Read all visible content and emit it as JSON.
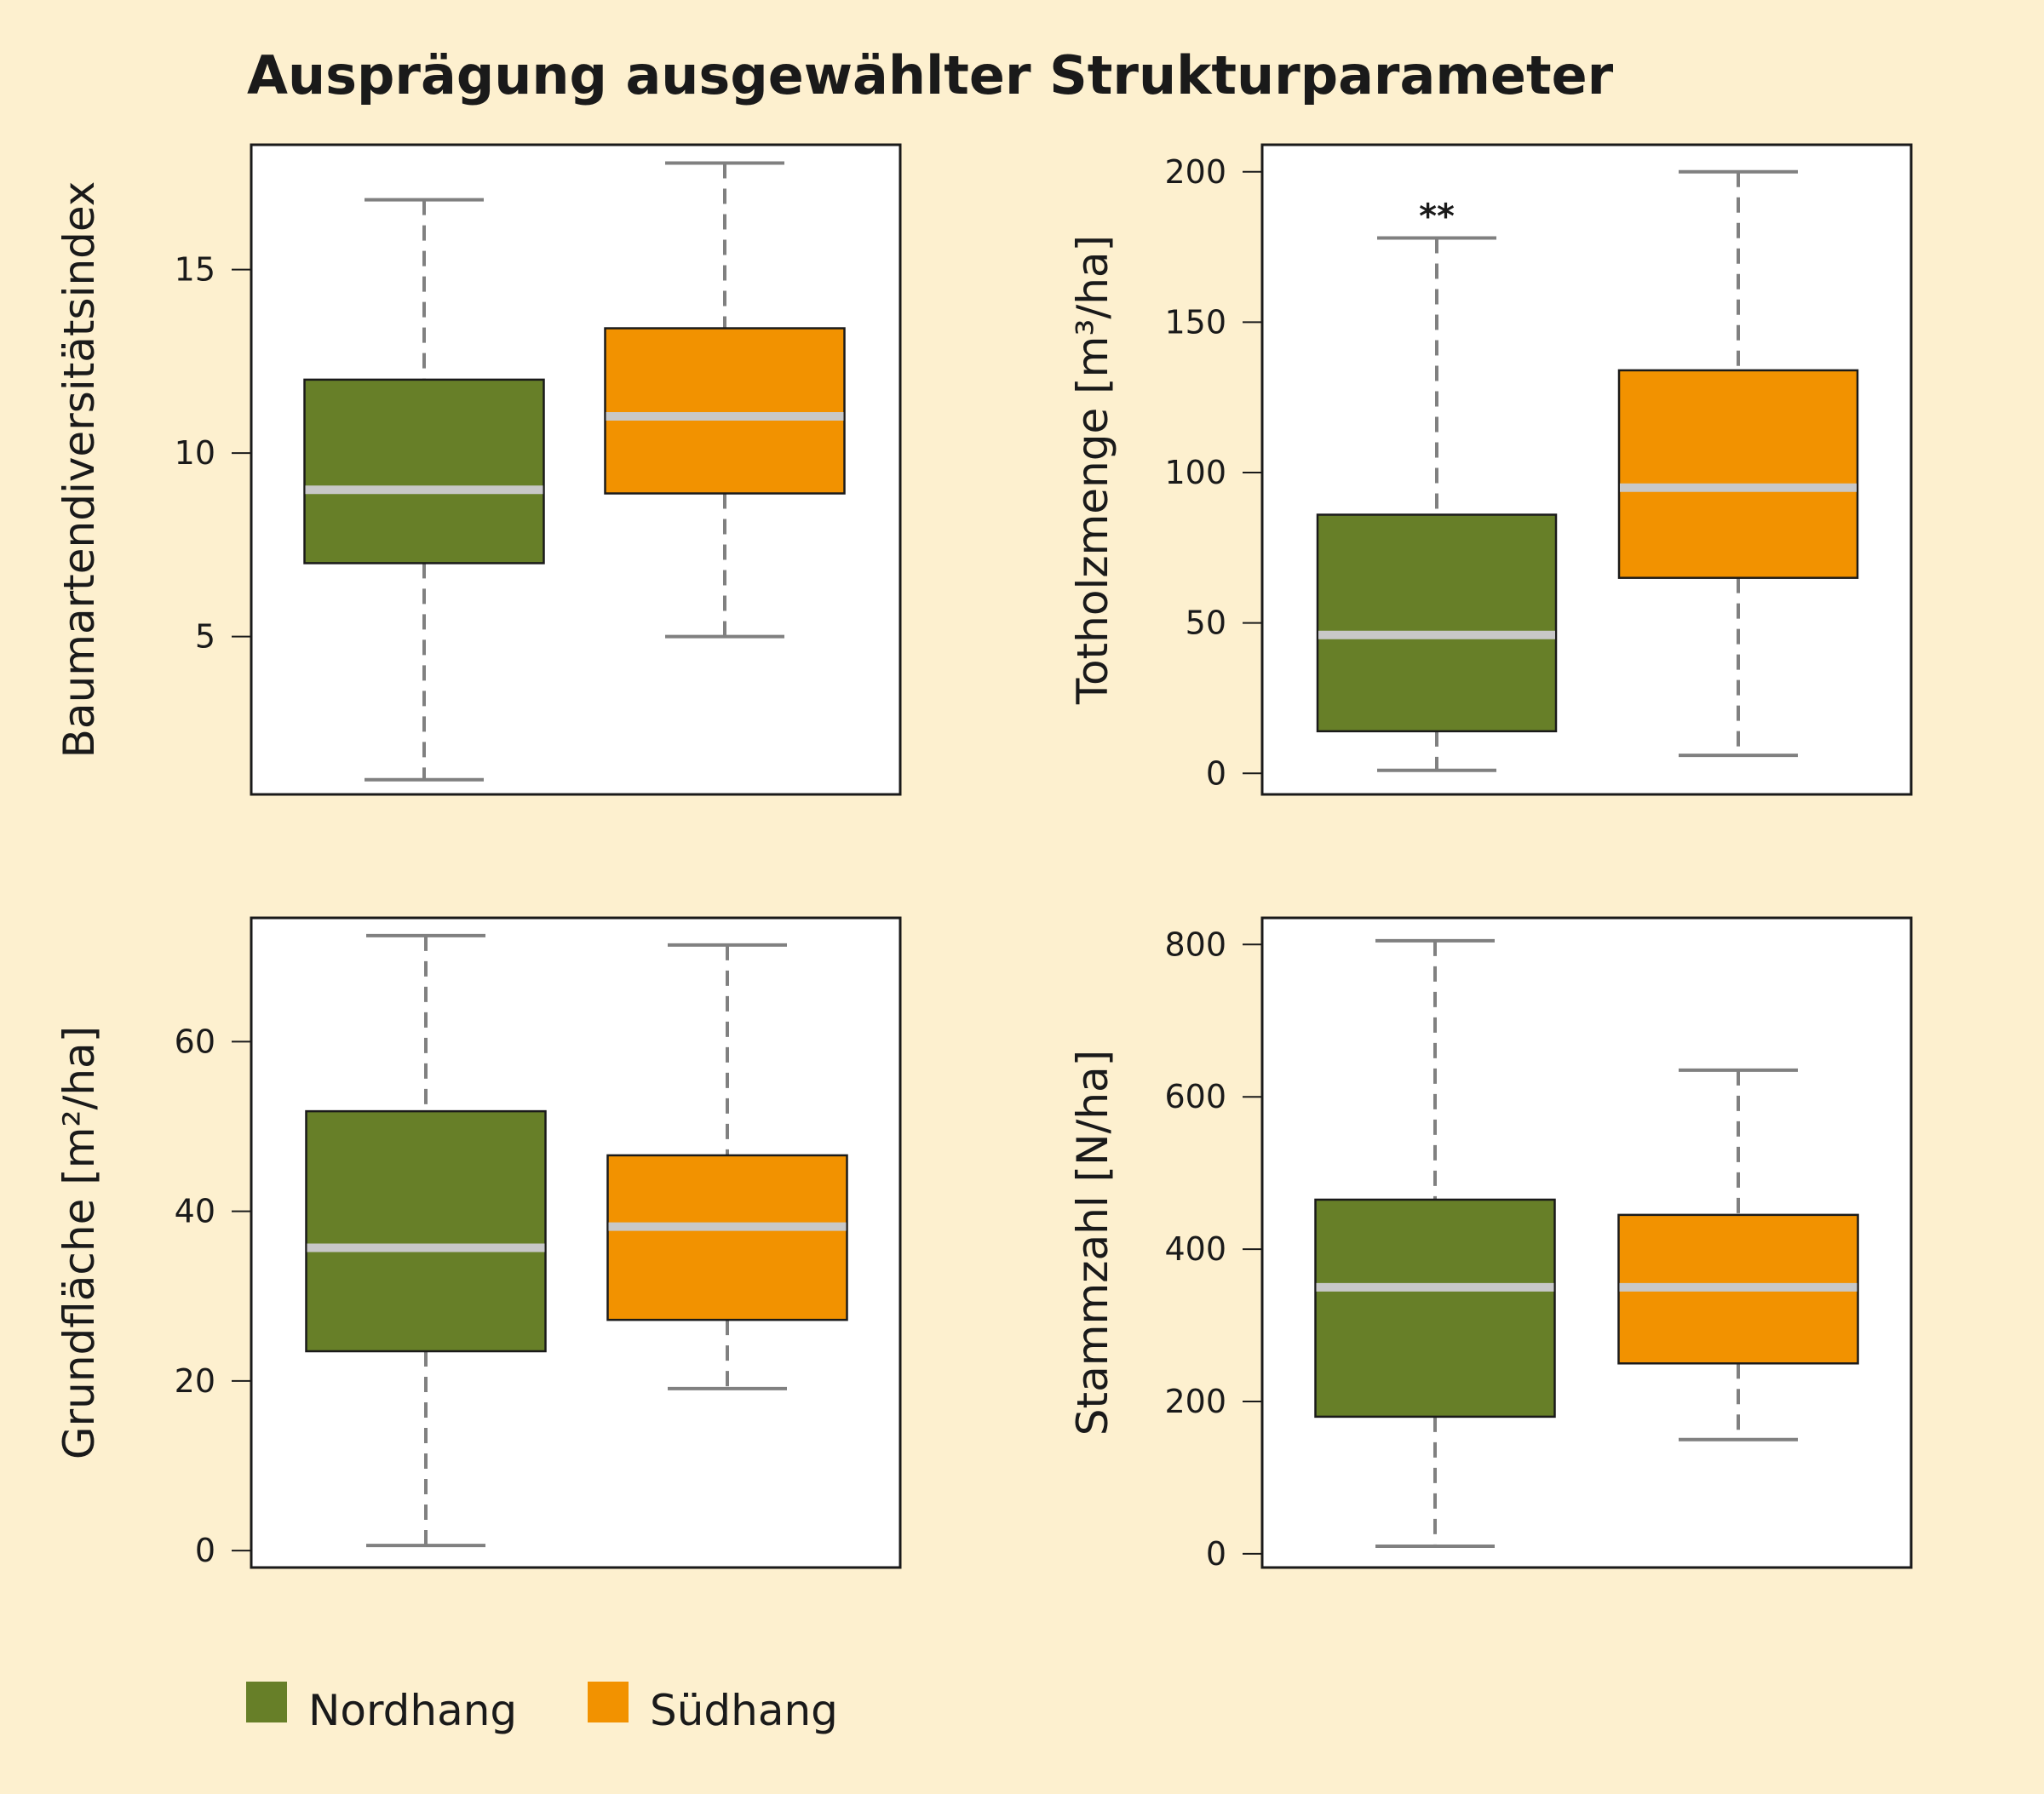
{
  "title": "Ausprägung ausgewählter Strukturparameter",
  "colors": {
    "background": "#fdf0cf",
    "nordhang": "#677f28",
    "suedhang": "#f29200",
    "median": "#c8c8c8",
    "whisker": "#808080",
    "frame": "#1a1a1a"
  },
  "legend": [
    {
      "label": "Nordhang",
      "color": "#677f28"
    },
    {
      "label": "Südhang",
      "color": "#f29200"
    }
  ],
  "chart_data": [
    {
      "type": "box",
      "ylabel": "Baumartendiversitätsindex",
      "ylim": [
        0.7,
        18.4
      ],
      "yticks": [
        5,
        10,
        15
      ],
      "groups": [
        {
          "name": "Nordhang",
          "min": 1.1,
          "q1": 7.0,
          "median": 9.0,
          "q3": 12.0,
          "max": 16.9
        },
        {
          "name": "Südhang",
          "min": 5.0,
          "q1": 8.9,
          "median": 11.0,
          "q3": 13.4,
          "max": 17.9
        }
      ]
    },
    {
      "type": "box",
      "ylabel": "Totholzmenge [m³/ha]",
      "ylim": [
        -7,
        209
      ],
      "yticks": [
        0,
        50,
        100,
        150,
        200
      ],
      "significance": {
        "group": "Nordhang",
        "label": "**"
      },
      "groups": [
        {
          "name": "Nordhang",
          "min": 1,
          "q1": 14,
          "median": 46,
          "q3": 86,
          "max": 178
        },
        {
          "name": "Südhang",
          "min": 6,
          "q1": 65,
          "median": 95,
          "q3": 134,
          "max": 200
        }
      ]
    },
    {
      "type": "box",
      "ylabel": "Grundfläche [m²/ha]",
      "ylim": [
        -2,
        74.6
      ],
      "yticks": [
        0,
        20,
        40,
        60
      ],
      "groups": [
        {
          "name": "Nordhang",
          "min": 0.6,
          "q1": 23.5,
          "median": 35.7,
          "q3": 51.8,
          "max": 72.5
        },
        {
          "name": "Südhang",
          "min": 19.1,
          "q1": 27.2,
          "median": 38.2,
          "q3": 46.6,
          "max": 71.4
        }
      ]
    },
    {
      "type": "box",
      "ylabel": "Stammzahl [N/ha]",
      "ylim": [
        -18,
        835
      ],
      "yticks": [
        0,
        200,
        400,
        600,
        800
      ],
      "groups": [
        {
          "name": "Nordhang",
          "min": 10,
          "q1": 180,
          "median": 350,
          "q3": 465,
          "max": 805
        },
        {
          "name": "Südhang",
          "min": 150,
          "q1": 250,
          "median": 350,
          "q3": 445,
          "max": 635
        }
      ]
    }
  ]
}
